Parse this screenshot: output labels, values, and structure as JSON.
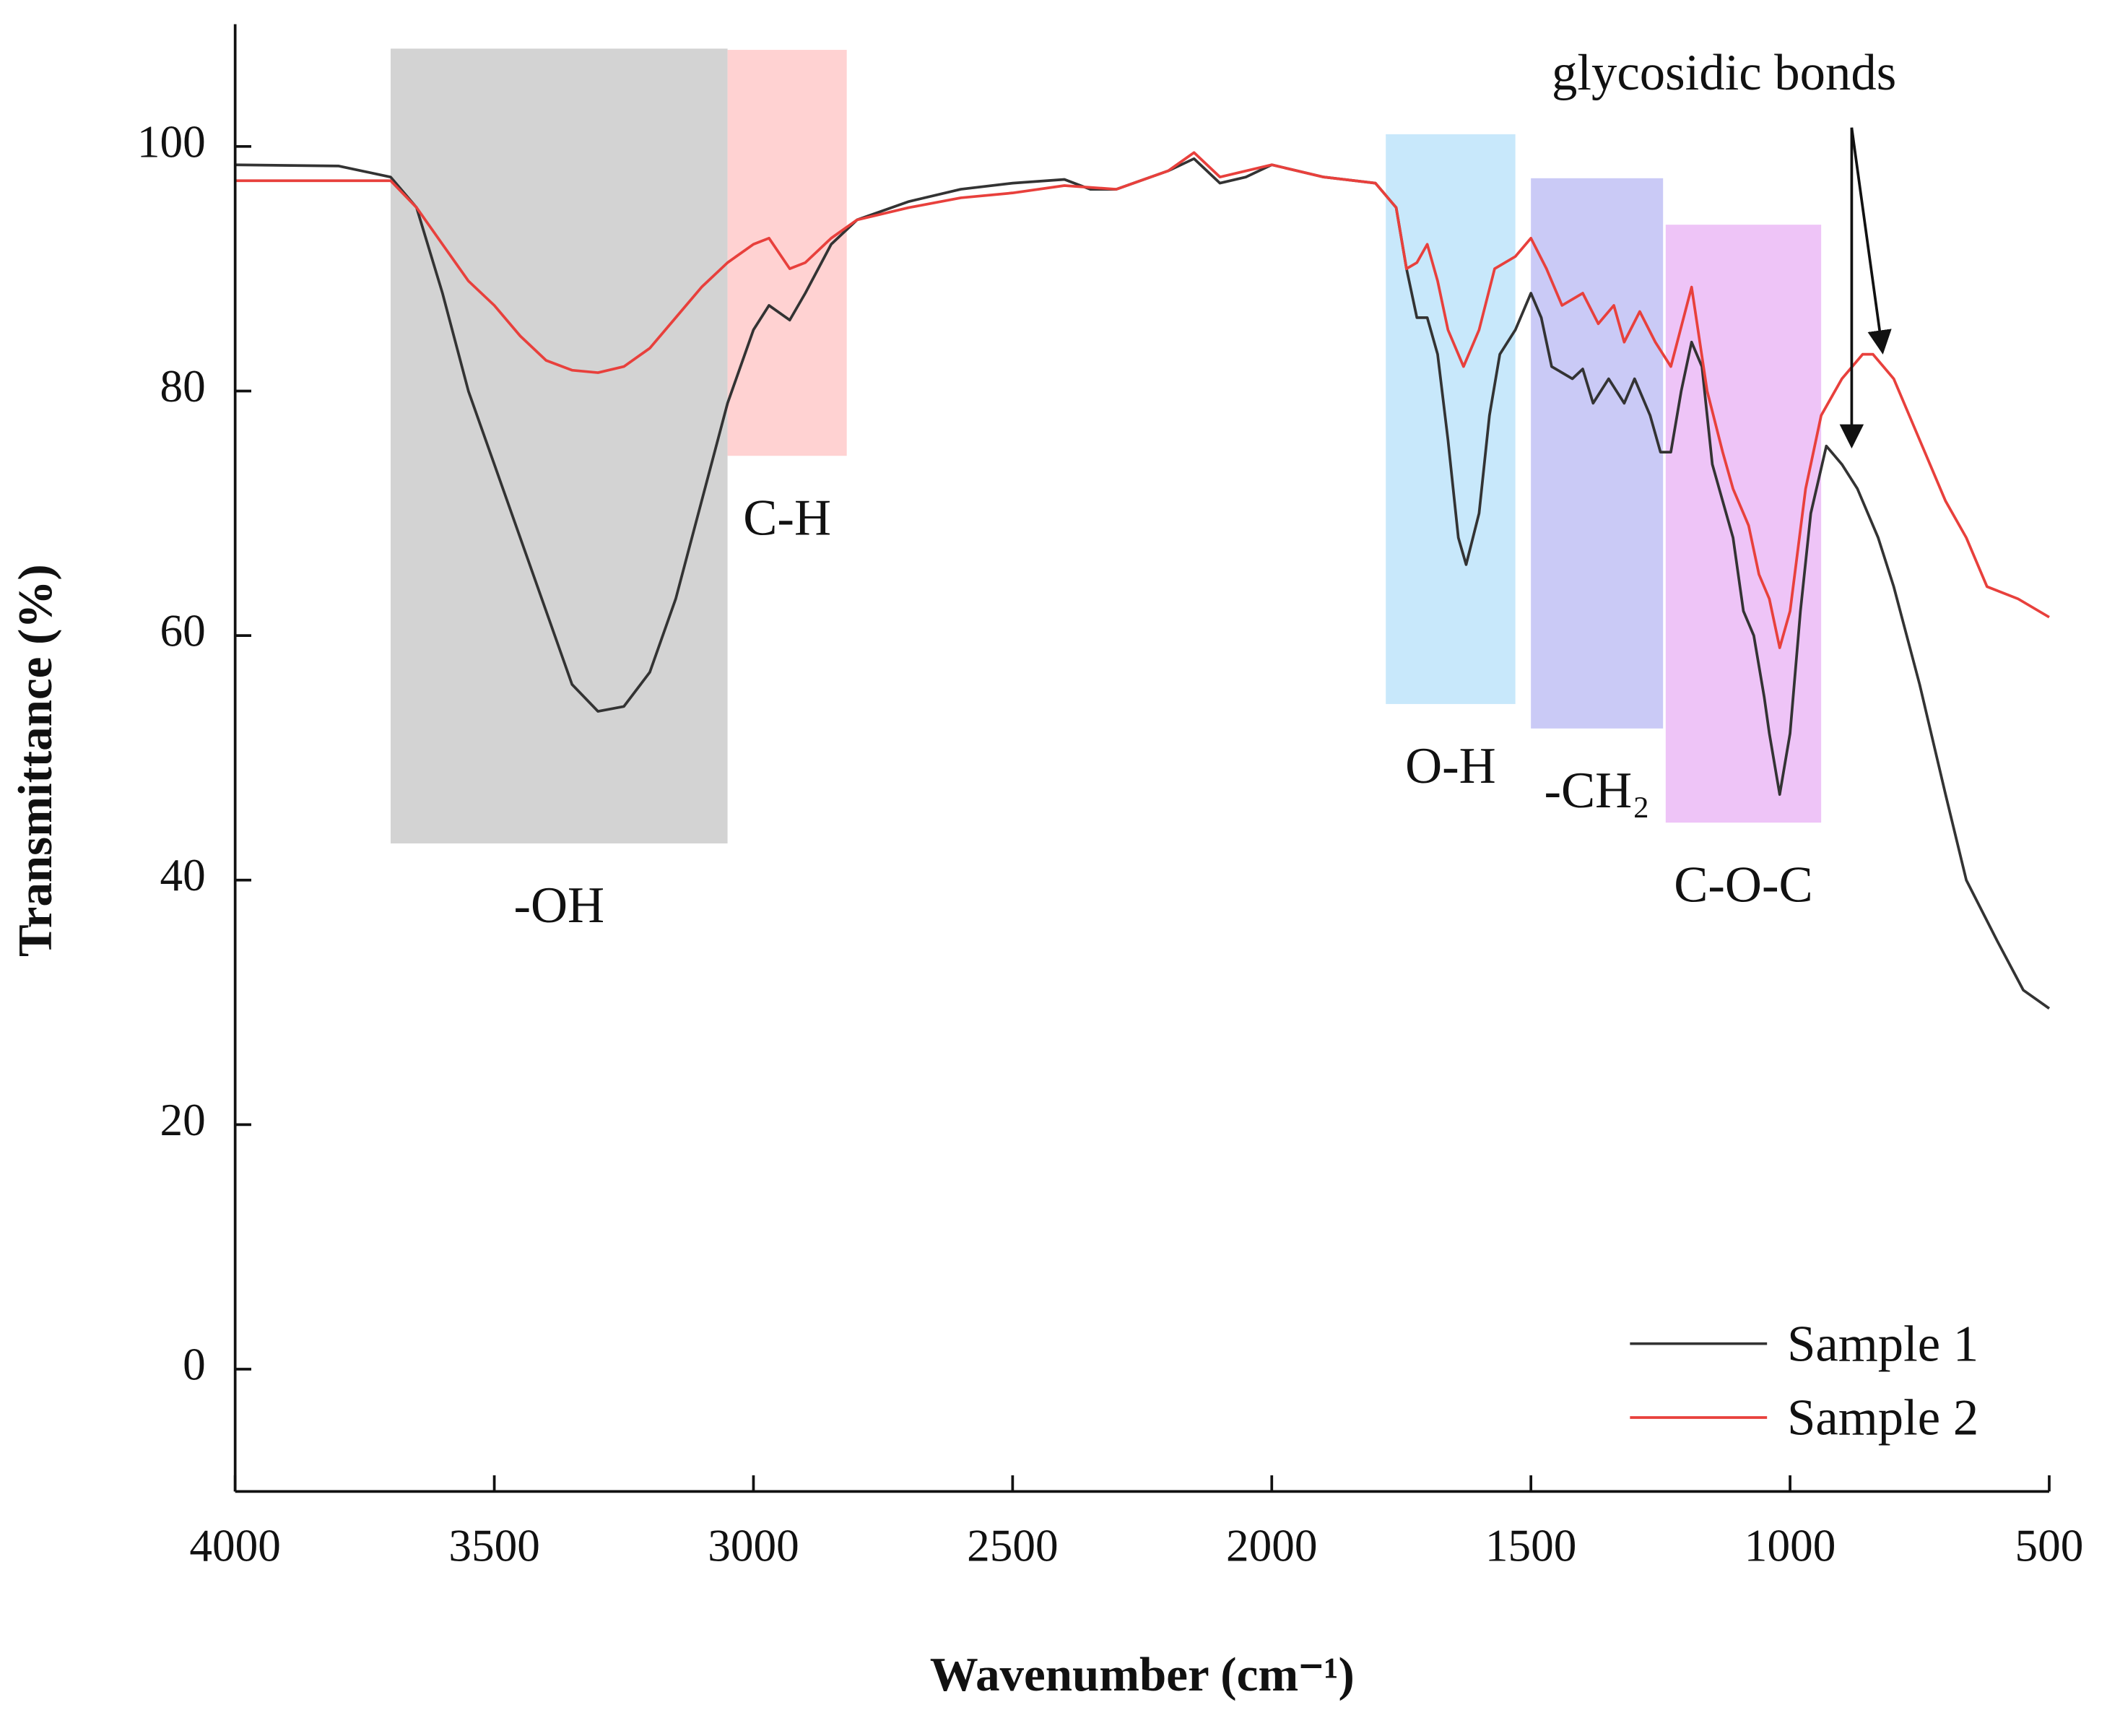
{
  "chart_data": {
    "type": "line",
    "xlabel": "Wavenumber (cm⁻¹)",
    "ylabel": "Transmittance (%)",
    "xlim": [
      4000,
      500
    ],
    "ylim": [
      -10,
      110
    ],
    "xticks": [
      4000,
      3500,
      3000,
      2500,
      2000,
      1500,
      1000,
      500
    ],
    "yticks": [
      0,
      20,
      40,
      60,
      80,
      100
    ],
    "legend": "lower right",
    "annotation": "glycosidic bonds",
    "regions": [
      {
        "label": "-OH",
        "x": [
          3700,
          3050
        ],
        "y": [
          43,
          108
        ],
        "color": "#d3d3d3"
      },
      {
        "label": "C-H",
        "x": [
          3050,
          2820
        ],
        "y": [
          74.7,
          107.9
        ],
        "color": "#ffd2d2"
      },
      {
        "label": "O-H",
        "x": [
          1780,
          1530
        ],
        "y": [
          54.4,
          101
        ],
        "color": "#c8e8fb"
      },
      {
        "label": "-CH₂",
        "x": [
          1500,
          1245
        ],
        "y": [
          52.4,
          97.4
        ],
        "color": "#cacaf6"
      },
      {
        "label": "C-O-C",
        "x": [
          1240,
          940
        ],
        "y": [
          44.7,
          93.6
        ],
        "color": "#eec4f7"
      }
    ],
    "series": [
      {
        "name": "Sample 1",
        "color": "#333333",
        "x": [
          4000,
          3800,
          3700,
          3650,
          3600,
          3550,
          3500,
          3450,
          3400,
          3350,
          3300,
          3250,
          3200,
          3150,
          3100,
          3050,
          3000,
          2970,
          2930,
          2900,
          2850,
          2800,
          2700,
          2600,
          2500,
          2400,
          2350,
          2300,
          2200,
          2150,
          2100,
          2050,
          2000,
          1950,
          1900,
          1800,
          1760,
          1740,
          1720,
          1700,
          1680,
          1660,
          1640,
          1625,
          1600,
          1580,
          1560,
          1530,
          1500,
          1480,
          1460,
          1420,
          1400,
          1380,
          1350,
          1320,
          1300,
          1270,
          1250,
          1230,
          1210,
          1190,
          1170,
          1150,
          1130,
          1110,
          1090,
          1070,
          1050,
          1040,
          1020,
          1000,
          980,
          960,
          930,
          900,
          870,
          830,
          800,
          750,
          700,
          660,
          600,
          550,
          500
        ],
        "values": [
          98.5,
          98.4,
          97.5,
          95,
          88,
          80,
          74,
          68,
          62,
          56,
          53.8,
          54.2,
          57,
          63,
          71,
          79,
          85,
          87,
          85.8,
          88,
          92,
          94,
          95.5,
          96.5,
          97,
          97.3,
          96.5,
          96.5,
          98,
          99,
          97,
          97.5,
          98.5,
          98,
          97.5,
          97,
          95,
          90,
          86,
          86,
          83,
          76,
          68,
          65.8,
          70,
          78,
          83,
          85,
          88,
          86,
          82,
          81,
          81.8,
          79,
          81,
          79,
          81,
          78,
          75,
          75,
          80,
          84,
          82,
          74,
          71,
          68,
          62,
          60,
          55,
          52,
          47,
          52,
          62,
          70,
          75.5,
          74,
          72,
          68,
          64,
          56,
          47,
          40,
          35,
          31,
          29.5
        ]
      },
      {
        "name": "Sample 2",
        "color": "#e8403c",
        "x": [
          4000,
          3700,
          3650,
          3600,
          3550,
          3500,
          3450,
          3400,
          3350,
          3300,
          3250,
          3200,
          3150,
          3100,
          3050,
          3000,
          2970,
          2930,
          2900,
          2850,
          2800,
          2700,
          2600,
          2500,
          2400,
          2300,
          2200,
          2150,
          2100,
          2000,
          1900,
          1800,
          1760,
          1740,
          1720,
          1700,
          1680,
          1660,
          1630,
          1600,
          1570,
          1530,
          1500,
          1470,
          1440,
          1400,
          1370,
          1340,
          1320,
          1290,
          1260,
          1230,
          1190,
          1160,
          1130,
          1110,
          1080,
          1060,
          1040,
          1020,
          1000,
          970,
          940,
          900,
          860,
          840,
          800,
          750,
          700,
          660,
          620,
          560,
          500
        ],
        "values": [
          97.2,
          97.2,
          95,
          92,
          89,
          87,
          84.5,
          82.5,
          81.7,
          81.5,
          82,
          83.5,
          86,
          88.5,
          90.5,
          92,
          92.5,
          90,
          90.5,
          92.5,
          94,
          95,
          95.8,
          96.2,
          96.8,
          96.5,
          98,
          99.5,
          97.5,
          98.5,
          97.5,
          97,
          95,
          90,
          90.5,
          92,
          89,
          85,
          82,
          85,
          90,
          91,
          92.5,
          90,
          87,
          88,
          85.5,
          87,
          84,
          86.5,
          84,
          82,
          88.5,
          80,
          75,
          72,
          69,
          65,
          63,
          59,
          62,
          72,
          78,
          81,
          83,
          83,
          81,
          76,
          71,
          68,
          64,
          63,
          61.5
        ]
      }
    ]
  }
}
